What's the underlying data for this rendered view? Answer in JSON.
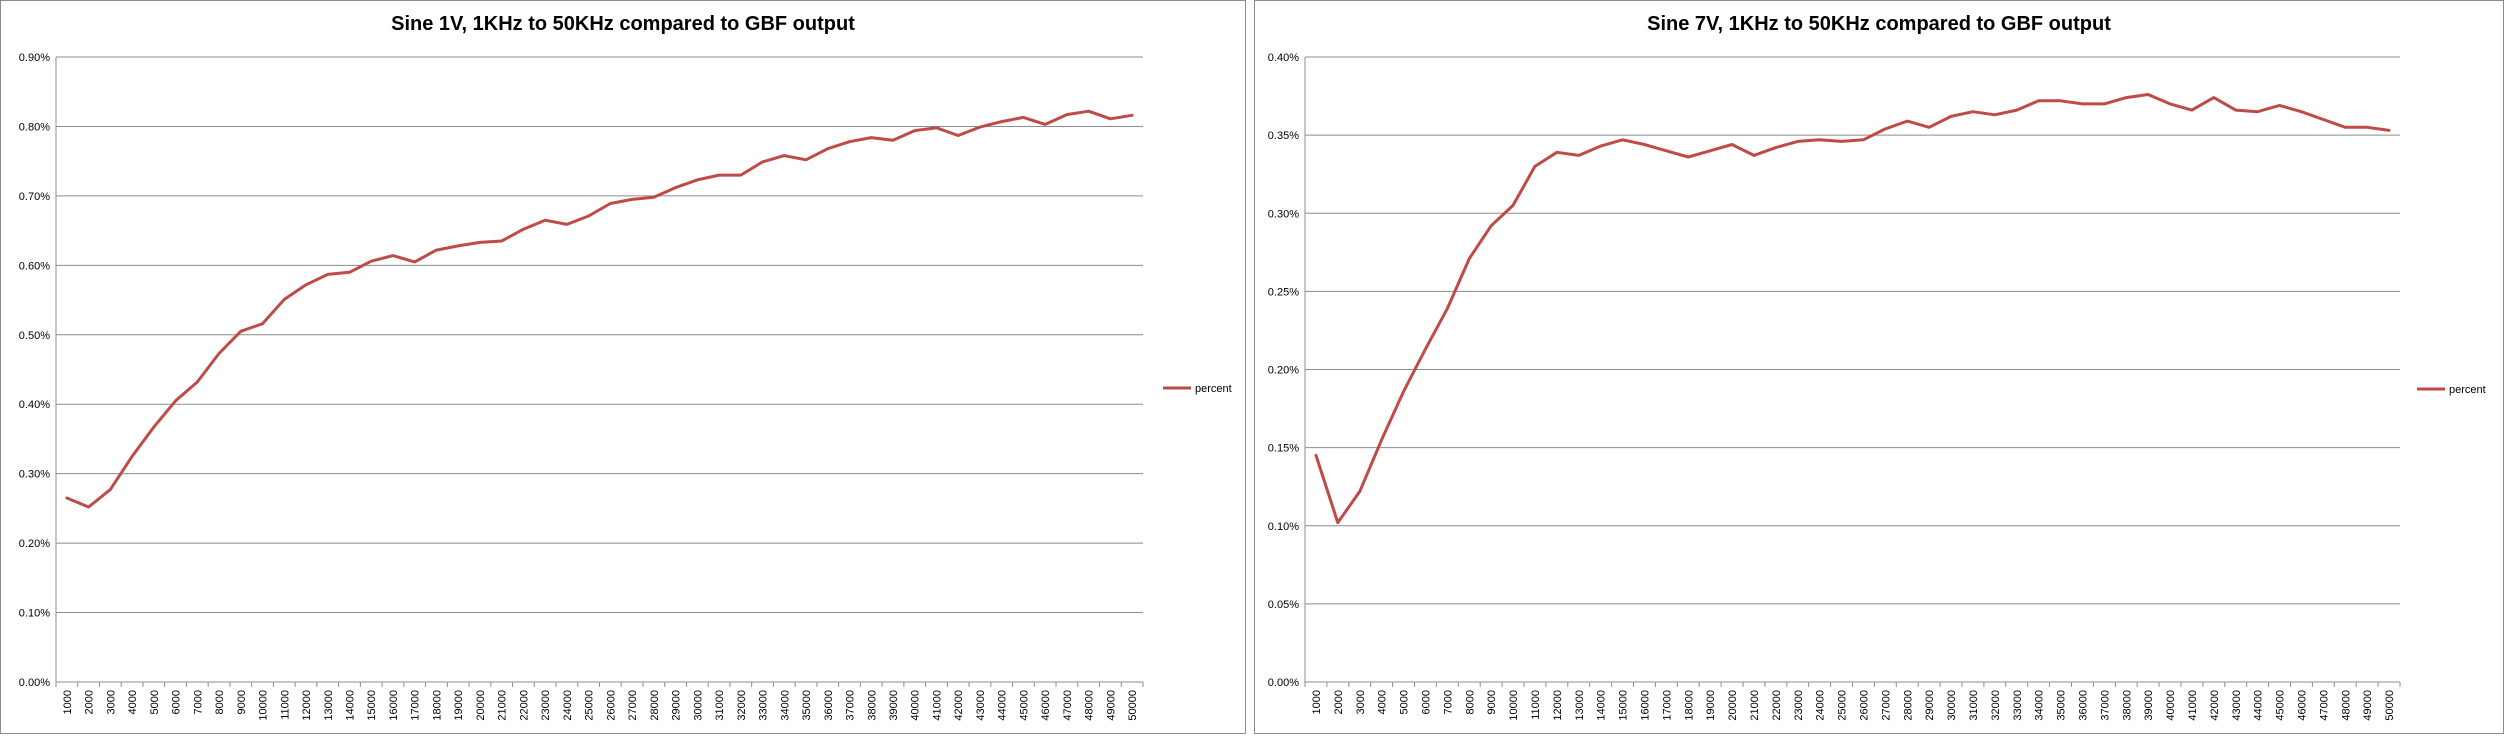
{
  "chart_data": [
    {
      "type": "line",
      "title": "Sine 1V, 1KHz to 50KHz compared to GBF output",
      "xlabel": "",
      "ylabel": "",
      "ylim": [
        0,
        0.9
      ],
      "y_ticks": [
        "0.00%",
        "0.10%",
        "0.20%",
        "0.30%",
        "0.40%",
        "0.50%",
        "0.60%",
        "0.70%",
        "0.80%",
        "0.90%"
      ],
      "grid": true,
      "legend": "right",
      "categories": [
        "1000",
        "2000",
        "3000",
        "4000",
        "5000",
        "6000",
        "7000",
        "8000",
        "9000",
        "10000",
        "11000",
        "12000",
        "13000",
        "14000",
        "15000",
        "16000",
        "17000",
        "18000",
        "19000",
        "20000",
        "21000",
        "22000",
        "23000",
        "24000",
        "25000",
        "26000",
        "27000",
        "28000",
        "29000",
        "30000",
        "31000",
        "32000",
        "33000",
        "34000",
        "35000",
        "36000",
        "37000",
        "38000",
        "39000",
        "40000",
        "41000",
        "42000",
        "43000",
        "44000",
        "45000",
        "46000",
        "47000",
        "48000",
        "49000",
        "50000"
      ],
      "series": [
        {
          "name": "percent",
          "color": "#be4b48",
          "values": [
            0.265,
            0.252,
            0.277,
            0.325,
            0.367,
            0.405,
            0.432,
            0.473,
            0.505,
            0.516,
            0.551,
            0.572,
            0.587,
            0.59,
            0.606,
            0.614,
            0.605,
            0.622,
            0.628,
            0.633,
            0.635,
            0.652,
            0.665,
            0.659,
            0.671,
            0.689,
            0.695,
            0.698,
            0.712,
            0.723,
            0.73,
            0.73,
            0.749,
            0.758,
            0.752,
            0.768,
            0.778,
            0.784,
            0.78,
            0.794,
            0.798,
            0.787,
            0.799,
            0.807,
            0.813,
            0.803,
            0.817,
            0.822,
            0.811,
            0.816
          ]
        }
      ]
    },
    {
      "type": "line",
      "title": "Sine 7V, 1KHz to 50KHz compared to GBF output",
      "xlabel": "",
      "ylabel": "",
      "ylim": [
        0,
        0.4
      ],
      "y_ticks": [
        "0.00%",
        "0.05%",
        "0.10%",
        "0.15%",
        "0.20%",
        "0.25%",
        "0.30%",
        "0.35%",
        "0.40%"
      ],
      "grid": true,
      "legend": "right",
      "categories": [
        "1000",
        "2000",
        "3000",
        "4000",
        "5000",
        "6000",
        "7000",
        "8000",
        "9000",
        "10000",
        "11000",
        "12000",
        "13000",
        "14000",
        "15000",
        "16000",
        "17000",
        "18000",
        "19000",
        "20000",
        "21000",
        "22000",
        "23000",
        "24000",
        "25000",
        "26000",
        "27000",
        "28000",
        "29000",
        "30000",
        "31000",
        "32000",
        "33000",
        "34000",
        "35000",
        "36000",
        "37000",
        "38000",
        "39000",
        "40000",
        "41000",
        "42000",
        "43000",
        "44000",
        "45000",
        "46000",
        "47000",
        "48000",
        "49000",
        "50000"
      ],
      "series": [
        {
          "name": "percent",
          "color": "#be4b48",
          "values": [
            0.145,
            0.102,
            0.122,
            0.155,
            0.186,
            0.213,
            0.239,
            0.271,
            0.292,
            0.305,
            0.33,
            0.339,
            0.337,
            0.343,
            0.347,
            0.344,
            0.34,
            0.336,
            0.34,
            0.344,
            0.337,
            0.342,
            0.346,
            0.347,
            0.346,
            0.347,
            0.354,
            0.359,
            0.355,
            0.362,
            0.365,
            0.363,
            0.366,
            0.372,
            0.372,
            0.37,
            0.37,
            0.374,
            0.376,
            0.37,
            0.366,
            0.374,
            0.366,
            0.365,
            0.369,
            0.365,
            0.36,
            0.355,
            0.355,
            0.353
          ]
        }
      ]
    }
  ]
}
